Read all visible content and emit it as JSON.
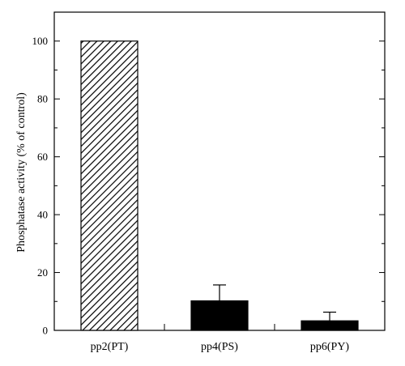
{
  "chart_data": {
    "type": "bar",
    "title": "",
    "xlabel": "",
    "ylabel": "Phosphatase activity (% of control)",
    "ylim": [
      0,
      110
    ],
    "yticks": [
      0,
      20,
      40,
      60,
      80,
      100
    ],
    "categories": [
      "pp2(PT)",
      "pp4(PS)",
      "pp6(PY)"
    ],
    "values": [
      100,
      10.2,
      3.3
    ],
    "errors": [
      0,
      5.5,
      3.0
    ],
    "fills": [
      "hatched",
      "solid",
      "solid"
    ],
    "grid": false,
    "legend": "none",
    "colors": {
      "bar": "#000000",
      "background": "#ffffff"
    }
  }
}
